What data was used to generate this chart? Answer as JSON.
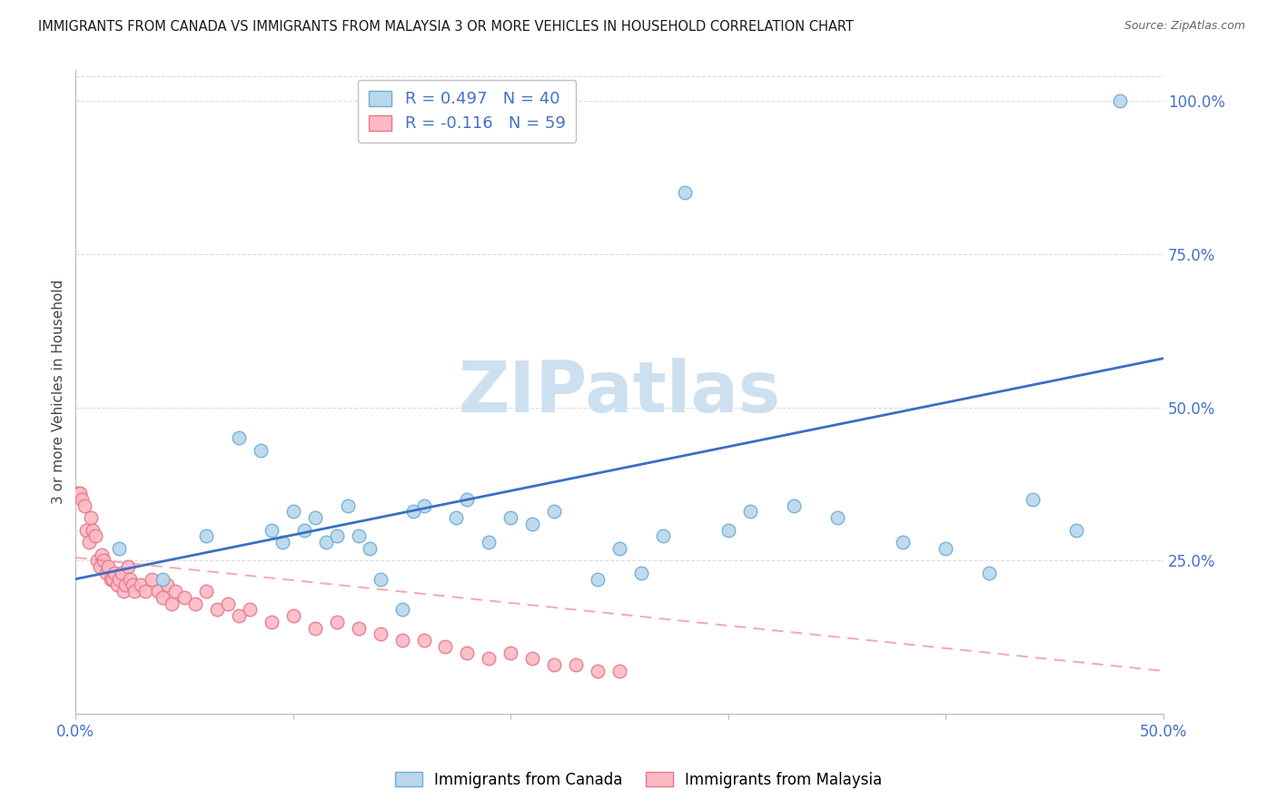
{
  "title": "IMMIGRANTS FROM CANADA VS IMMIGRANTS FROM MALAYSIA 3 OR MORE VEHICLES IN HOUSEHOLD CORRELATION CHART",
  "source": "Source: ZipAtlas.com",
  "ylabel": "3 or more Vehicles in Household",
  "xlim": [
    0.0,
    0.5
  ],
  "ylim": [
    0.0,
    1.05
  ],
  "xticks": [
    0.0,
    0.1,
    0.2,
    0.3,
    0.4,
    0.5
  ],
  "xticklabels": [
    "0.0%",
    "",
    "",
    "",
    "",
    "50.0%"
  ],
  "yticks_right": [
    0.0,
    0.25,
    0.5,
    0.75,
    1.0
  ],
  "yticklabels_right": [
    "",
    "25.0%",
    "50.0%",
    "75.0%",
    "100.0%"
  ],
  "canada_color": "#bad6eb",
  "canada_edge_color": "#6aaed6",
  "malaysia_color": "#fcb9c4",
  "malaysia_edge_color": "#e8768a",
  "canada_line_color": "#3a6fc4",
  "malaysia_line_color": "#e8768a",
  "tick_color": "#4472c4",
  "legend_label_color": "#4472c4",
  "grid_color": "#dddddd",
  "watermark_color": "#cce0f0",
  "canada_x": [
    0.02,
    0.04,
    0.06,
    0.075,
    0.085,
    0.09,
    0.095,
    0.1,
    0.105,
    0.11,
    0.115,
    0.12,
    0.125,
    0.13,
    0.135,
    0.14,
    0.15,
    0.155,
    0.16,
    0.175,
    0.18,
    0.19,
    0.2,
    0.21,
    0.22,
    0.24,
    0.25,
    0.26,
    0.27,
    0.28,
    0.3,
    0.31,
    0.33,
    0.35,
    0.38,
    0.4,
    0.42,
    0.44,
    0.46,
    0.48
  ],
  "canada_y": [
    0.27,
    0.22,
    0.29,
    0.45,
    0.43,
    0.3,
    0.28,
    0.33,
    0.3,
    0.32,
    0.28,
    0.29,
    0.34,
    0.29,
    0.27,
    0.22,
    0.17,
    0.33,
    0.34,
    0.32,
    0.35,
    0.28,
    0.32,
    0.31,
    0.33,
    0.22,
    0.27,
    0.23,
    0.29,
    0.85,
    0.3,
    0.33,
    0.34,
    0.32,
    0.28,
    0.27,
    0.23,
    0.35,
    0.3,
    1.0
  ],
  "malaysia_x": [
    0.001,
    0.002,
    0.003,
    0.004,
    0.005,
    0.006,
    0.007,
    0.008,
    0.009,
    0.01,
    0.011,
    0.012,
    0.013,
    0.014,
    0.015,
    0.016,
    0.017,
    0.018,
    0.019,
    0.02,
    0.021,
    0.022,
    0.023,
    0.024,
    0.025,
    0.026,
    0.027,
    0.03,
    0.032,
    0.035,
    0.038,
    0.04,
    0.042,
    0.044,
    0.046,
    0.05,
    0.055,
    0.06,
    0.065,
    0.07,
    0.075,
    0.08,
    0.09,
    0.1,
    0.11,
    0.12,
    0.13,
    0.14,
    0.15,
    0.16,
    0.17,
    0.18,
    0.19,
    0.2,
    0.21,
    0.22,
    0.23,
    0.24,
    0.25
  ],
  "malaysia_y": [
    0.36,
    0.36,
    0.35,
    0.34,
    0.3,
    0.28,
    0.32,
    0.3,
    0.29,
    0.25,
    0.24,
    0.26,
    0.25,
    0.23,
    0.24,
    0.22,
    0.22,
    0.23,
    0.21,
    0.22,
    0.23,
    0.2,
    0.21,
    0.24,
    0.22,
    0.21,
    0.2,
    0.21,
    0.2,
    0.22,
    0.2,
    0.19,
    0.21,
    0.18,
    0.2,
    0.19,
    0.18,
    0.2,
    0.17,
    0.18,
    0.16,
    0.17,
    0.15,
    0.16,
    0.14,
    0.15,
    0.14,
    0.13,
    0.12,
    0.12,
    0.11,
    0.1,
    0.09,
    0.1,
    0.09,
    0.08,
    0.08,
    0.07,
    0.07
  ],
  "canada_trendline_x": [
    0.0,
    0.5
  ],
  "canada_trendline_y": [
    0.22,
    0.58
  ],
  "malaysia_trendline_x": [
    0.0,
    0.5
  ],
  "malaysia_trendline_y": [
    0.255,
    0.07
  ]
}
